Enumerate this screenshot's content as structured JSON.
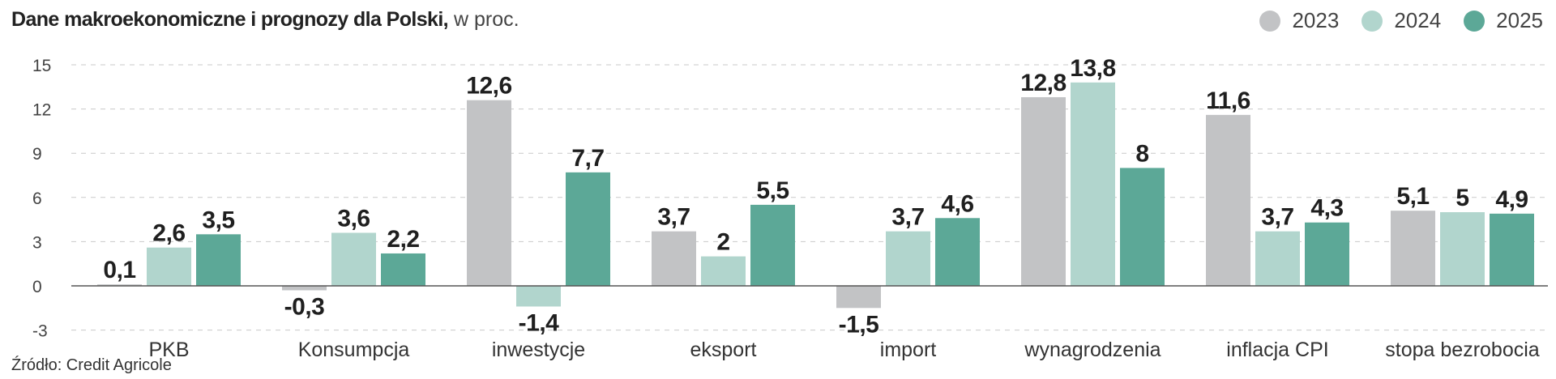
{
  "title": {
    "bold": "Dane makroekonomiczne i prognozy dla Polski,",
    "light": " w proc."
  },
  "source": "Źródło: Credit Agricole",
  "colors": {
    "2023": "#c2c3c5",
    "2024": "#b1d5cd",
    "2025": "#5ca897"
  },
  "chart_data": {
    "type": "bar",
    "title": "Dane makroekonomiczne i prognozy dla Polski, w proc.",
    "categories": [
      "PKB",
      "Konsumpcja",
      "inwestycje",
      "eksport",
      "import",
      "wynagrodzenia",
      "inflacja CPI",
      "stopa bezrobocia"
    ],
    "series": [
      {
        "name": "2023",
        "values": [
          0.1,
          -0.3,
          12.6,
          3.7,
          -1.5,
          12.8,
          11.6,
          5.1
        ],
        "labels": [
          "0,1",
          "-0,3",
          "12,6",
          "3,7",
          "-1,5",
          "12,8",
          "11,6",
          "5,1"
        ]
      },
      {
        "name": "2024",
        "values": [
          2.6,
          3.6,
          -1.4,
          2.0,
          3.7,
          13.8,
          3.7,
          5.0
        ],
        "labels": [
          "2,6",
          "3,6",
          "-1,4",
          "2",
          "3,7",
          "13,8",
          "3,7",
          "5"
        ]
      },
      {
        "name": "2025",
        "values": [
          3.5,
          2.2,
          7.7,
          5.5,
          4.6,
          8.0,
          4.3,
          4.9
        ],
        "labels": [
          "3,5",
          "2,2",
          "7,7",
          "5,5",
          "4,6",
          "8",
          "4,3",
          "4,9"
        ]
      }
    ],
    "yticks": [
      "15",
      "12",
      "9",
      "6",
      "3",
      "0",
      "-3"
    ],
    "ylim": [
      -3,
      15
    ],
    "grid": true,
    "legend": "top-right"
  }
}
